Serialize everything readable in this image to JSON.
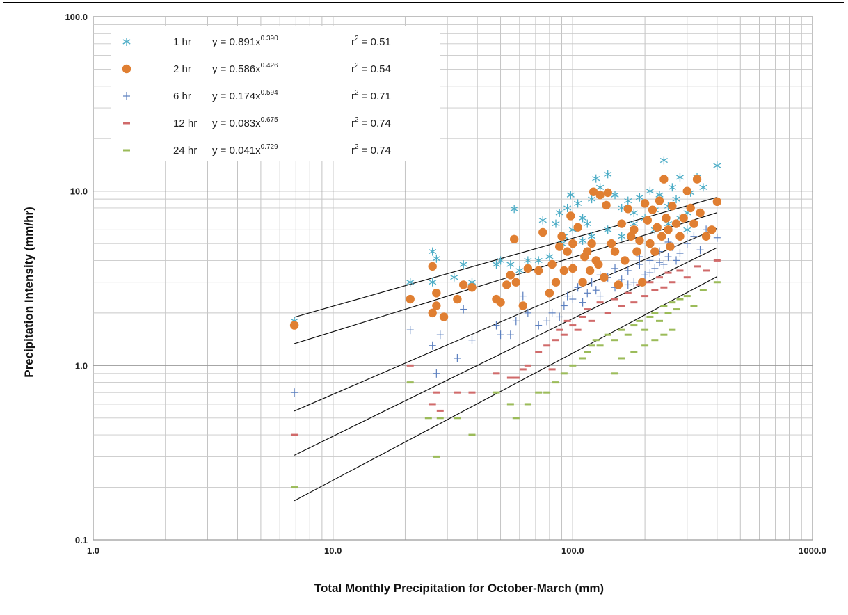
{
  "chart_data": {
    "type": "scatter",
    "xlabel": "Total Monthly Precipitation for October-March (mm)",
    "ylabel": "Precipitation Intensity (mm/hr)",
    "xscale": "log",
    "yscale": "log",
    "xlim": [
      1.0,
      1000.0
    ],
    "ylim": [
      0.1,
      100.0
    ],
    "x_ticks": [
      "1.0",
      "10.0",
      "100.0",
      "1000.0"
    ],
    "y_ticks": [
      "0.1",
      "1.0",
      "10.0",
      "100.0"
    ],
    "grid": true,
    "legend_position": "top-left",
    "fit_x_range": [
      6.9,
      400
    ],
    "series": [
      {
        "name": "1 hr",
        "marker": "asterisk",
        "color": "#4bacc6",
        "equation": "y = 0.891x",
        "exponent": "0.390",
        "r2_label": "r",
        "r2_value": " = 0.51",
        "fit": {
          "a": 0.891,
          "b": 0.39
        },
        "points": [
          [
            6.9,
            1.8
          ],
          [
            21,
            3.0
          ],
          [
            26,
            4.5
          ],
          [
            27,
            4.1
          ],
          [
            26,
            3.0
          ],
          [
            32,
            3.2
          ],
          [
            35,
            3.8
          ],
          [
            38,
            3.0
          ],
          [
            48,
            3.8
          ],
          [
            50,
            4.0
          ],
          [
            55,
            3.8
          ],
          [
            57,
            7.9
          ],
          [
            60,
            3.5
          ],
          [
            65,
            4.0
          ],
          [
            72,
            4.0
          ],
          [
            75,
            6.8
          ],
          [
            80,
            4.2
          ],
          [
            85,
            6.5
          ],
          [
            88,
            7.5
          ],
          [
            92,
            5.5
          ],
          [
            95,
            8.0
          ],
          [
            98,
            9.5
          ],
          [
            100,
            6.0
          ],
          [
            105,
            8.5
          ],
          [
            110,
            7.0
          ],
          [
            115,
            6.5
          ],
          [
            120,
            9.0
          ],
          [
            125,
            11.8
          ],
          [
            130,
            10.5
          ],
          [
            140,
            12.5
          ],
          [
            150,
            9.5
          ],
          [
            160,
            8.0
          ],
          [
            170,
            8.8
          ],
          [
            180,
            7.5
          ],
          [
            190,
            9.2
          ],
          [
            200,
            8.5
          ],
          [
            210,
            10.0
          ],
          [
            220,
            7.8
          ],
          [
            230,
            9.5
          ],
          [
            240,
            15.0
          ],
          [
            250,
            8.2
          ],
          [
            260,
            10.5
          ],
          [
            270,
            9.0
          ],
          [
            280,
            12.0
          ],
          [
            300,
            7.5
          ],
          [
            310,
            9.8
          ],
          [
            330,
            12.0
          ],
          [
            350,
            10.5
          ],
          [
            400,
            14.0
          ],
          [
            140,
            6.0
          ],
          [
            160,
            5.5
          ],
          [
            180,
            6.5
          ],
          [
            200,
            7.0
          ],
          [
            220,
            6.0
          ],
          [
            250,
            6.5
          ],
          [
            280,
            7.0
          ],
          [
            300,
            6.0
          ],
          [
            120,
            5.5
          ],
          [
            90,
            5.0
          ],
          [
            110,
            5.2
          ]
        ]
      },
      {
        "name": "2 hr",
        "marker": "circle",
        "color": "#e07f32",
        "equation": "y = 0.586x",
        "exponent": "0.426",
        "r2_label": "r",
        "r2_value": " = 0.54",
        "fit": {
          "a": 0.586,
          "b": 0.426
        },
        "points": [
          [
            6.9,
            1.7
          ],
          [
            21,
            2.4
          ],
          [
            26,
            2.0
          ],
          [
            26,
            3.7
          ],
          [
            27,
            2.6
          ],
          [
            27,
            2.2
          ],
          [
            29,
            1.9
          ],
          [
            33,
            2.4
          ],
          [
            35,
            2.9
          ],
          [
            38,
            2.8
          ],
          [
            48,
            2.4
          ],
          [
            50,
            2.3
          ],
          [
            53,
            2.9
          ],
          [
            55,
            3.3
          ],
          [
            57,
            5.3
          ],
          [
            58,
            3.0
          ],
          [
            62,
            2.2
          ],
          [
            65,
            3.6
          ],
          [
            72,
            3.5
          ],
          [
            75,
            5.8
          ],
          [
            80,
            2.6
          ],
          [
            82,
            3.8
          ],
          [
            85,
            3.0
          ],
          [
            88,
            4.8
          ],
          [
            90,
            5.5
          ],
          [
            92,
            3.5
          ],
          [
            95,
            4.5
          ],
          [
            98,
            7.2
          ],
          [
            100,
            3.6
          ],
          [
            100,
            5.0
          ],
          [
            105,
            6.2
          ],
          [
            110,
            3.0
          ],
          [
            112,
            4.2
          ],
          [
            115,
            4.5
          ],
          [
            118,
            3.5
          ],
          [
            120,
            5.0
          ],
          [
            122,
            9.9
          ],
          [
            125,
            4.0
          ],
          [
            128,
            3.8
          ],
          [
            130,
            9.5
          ],
          [
            135,
            3.2
          ],
          [
            138,
            8.3
          ],
          [
            140,
            9.8
          ],
          [
            145,
            5.0
          ],
          [
            150,
            4.5
          ],
          [
            155,
            2.9
          ],
          [
            160,
            6.5
          ],
          [
            165,
            4.0
          ],
          [
            170,
            7.9
          ],
          [
            175,
            5.5
          ],
          [
            180,
            6.0
          ],
          [
            185,
            4.5
          ],
          [
            190,
            5.2
          ],
          [
            195,
            3.0
          ],
          [
            200,
            8.5
          ],
          [
            205,
            6.8
          ],
          [
            210,
            5.0
          ],
          [
            215,
            7.8
          ],
          [
            220,
            4.5
          ],
          [
            225,
            6.2
          ],
          [
            230,
            8.8
          ],
          [
            235,
            5.5
          ],
          [
            240,
            11.7
          ],
          [
            245,
            7.0
          ],
          [
            250,
            6.0
          ],
          [
            255,
            4.8
          ],
          [
            260,
            8.2
          ],
          [
            270,
            6.5
          ],
          [
            280,
            5.5
          ],
          [
            290,
            7.0
          ],
          [
            300,
            10.0
          ],
          [
            310,
            8.0
          ],
          [
            320,
            6.5
          ],
          [
            330,
            11.7
          ],
          [
            340,
            7.5
          ],
          [
            360,
            5.5
          ],
          [
            380,
            6.0
          ],
          [
            400,
            8.7
          ]
        ]
      },
      {
        "name": "6 hr",
        "marker": "plus",
        "color": "#5b7fbf",
        "equation": "y = 0.174x",
        "exponent": "0.594",
        "r2_label": "r",
        "r2_value": " = 0.71",
        "fit": {
          "a": 0.174,
          "b": 0.594
        },
        "points": [
          [
            6.9,
            0.7
          ],
          [
            21,
            1.6
          ],
          [
            26,
            1.3
          ],
          [
            27,
            0.9
          ],
          [
            28,
            1.5
          ],
          [
            33,
            1.1
          ],
          [
            35,
            2.1
          ],
          [
            38,
            1.4
          ],
          [
            48,
            1.7
          ],
          [
            50,
            1.5
          ],
          [
            55,
            1.5
          ],
          [
            58,
            1.8
          ],
          [
            62,
            2.5
          ],
          [
            65,
            2.0
          ],
          [
            72,
            1.7
          ],
          [
            78,
            1.8
          ],
          [
            82,
            2.0
          ],
          [
            88,
            1.9
          ],
          [
            92,
            2.2
          ],
          [
            95,
            2.5
          ],
          [
            100,
            2.4
          ],
          [
            105,
            2.8
          ],
          [
            110,
            2.3
          ],
          [
            115,
            2.6
          ],
          [
            120,
            3.0
          ],
          [
            125,
            2.7
          ],
          [
            130,
            3.3
          ],
          [
            140,
            3.2
          ],
          [
            150,
            2.8
          ],
          [
            160,
            3.1
          ],
          [
            170,
            3.5
          ],
          [
            180,
            3.0
          ],
          [
            190,
            3.8
          ],
          [
            200,
            3.3
          ],
          [
            210,
            4.0
          ],
          [
            220,
            3.6
          ],
          [
            230,
            4.5
          ],
          [
            240,
            3.8
          ],
          [
            250,
            4.2
          ],
          [
            260,
            4.8
          ],
          [
            270,
            4.0
          ],
          [
            280,
            4.4
          ],
          [
            300,
            5.0
          ],
          [
            320,
            5.5
          ],
          [
            340,
            4.6
          ],
          [
            360,
            6.0
          ],
          [
            400,
            5.4
          ],
          [
            130,
            2.5
          ],
          [
            150,
            3.6
          ],
          [
            170,
            2.9
          ],
          [
            190,
            4.2
          ],
          [
            210,
            3.4
          ],
          [
            230,
            3.9
          ],
          [
            250,
            5.1
          ]
        ]
      },
      {
        "name": "12 hr",
        "marker": "dash",
        "color": "#d06a6a",
        "equation": "y = 0.083x",
        "exponent": "0.675",
        "r2_label": "r",
        "r2_value": " = 0.74",
        "fit": {
          "a": 0.083,
          "b": 0.675
        },
        "points": [
          [
            6.9,
            0.4
          ],
          [
            21,
            1.0
          ],
          [
            26,
            0.6
          ],
          [
            27,
            0.7
          ],
          [
            28,
            0.55
          ],
          [
            33,
            0.7
          ],
          [
            38,
            0.7
          ],
          [
            48,
            0.9
          ],
          [
            55,
            0.85
          ],
          [
            58,
            0.85
          ],
          [
            62,
            0.95
          ],
          [
            65,
            1.0
          ],
          [
            72,
            1.2
          ],
          [
            78,
            1.3
          ],
          [
            82,
            0.95
          ],
          [
            85,
            1.4
          ],
          [
            88,
            1.6
          ],
          [
            92,
            1.5
          ],
          [
            95,
            1.8
          ],
          [
            100,
            1.7
          ],
          [
            105,
            1.6
          ],
          [
            110,
            1.9
          ],
          [
            115,
            2.1
          ],
          [
            120,
            1.8
          ],
          [
            130,
            2.3
          ],
          [
            140,
            2.0
          ],
          [
            150,
            2.4
          ],
          [
            160,
            2.2
          ],
          [
            170,
            2.6
          ],
          [
            180,
            2.3
          ],
          [
            190,
            2.9
          ],
          [
            200,
            2.5
          ],
          [
            210,
            3.0
          ],
          [
            220,
            2.7
          ],
          [
            230,
            3.2
          ],
          [
            240,
            2.8
          ],
          [
            250,
            3.4
          ],
          [
            260,
            3.0
          ],
          [
            280,
            3.5
          ],
          [
            300,
            3.2
          ],
          [
            330,
            3.7
          ],
          [
            360,
            3.5
          ],
          [
            400,
            4.0
          ]
        ]
      },
      {
        "name": "24 hr",
        "marker": "dash",
        "color": "#9bbb59",
        "equation": "y = 0.041x",
        "exponent": "0.729",
        "r2_label": "r",
        "r2_value": " = 0.74",
        "fit": {
          "a": 0.041,
          "b": 0.729
        },
        "points": [
          [
            6.9,
            0.2
          ],
          [
            21,
            0.8
          ],
          [
            25,
            0.5
          ],
          [
            27,
            0.3
          ],
          [
            28,
            0.5
          ],
          [
            33,
            0.5
          ],
          [
            38,
            0.4
          ],
          [
            48,
            0.7
          ],
          [
            55,
            0.6
          ],
          [
            58,
            0.5
          ],
          [
            65,
            0.6
          ],
          [
            72,
            0.7
          ],
          [
            78,
            0.7
          ],
          [
            85,
            0.8
          ],
          [
            92,
            0.9
          ],
          [
            100,
            1.0
          ],
          [
            110,
            1.1
          ],
          [
            115,
            1.2
          ],
          [
            120,
            1.3
          ],
          [
            125,
            1.4
          ],
          [
            130,
            1.3
          ],
          [
            140,
            1.5
          ],
          [
            150,
            1.4
          ],
          [
            160,
            1.6
          ],
          [
            170,
            1.5
          ],
          [
            180,
            1.7
          ],
          [
            190,
            1.8
          ],
          [
            200,
            1.6
          ],
          [
            210,
            1.9
          ],
          [
            220,
            2.0
          ],
          [
            230,
            1.8
          ],
          [
            240,
            2.2
          ],
          [
            250,
            2.0
          ],
          [
            260,
            2.3
          ],
          [
            270,
            2.1
          ],
          [
            280,
            2.4
          ],
          [
            300,
            2.5
          ],
          [
            320,
            2.2
          ],
          [
            350,
            2.7
          ],
          [
            400,
            3.0
          ],
          [
            150,
            0.9
          ],
          [
            160,
            1.1
          ],
          [
            180,
            1.2
          ],
          [
            200,
            1.3
          ],
          [
            220,
            1.4
          ],
          [
            240,
            1.5
          ],
          [
            260,
            1.6
          ]
        ]
      }
    ]
  }
}
